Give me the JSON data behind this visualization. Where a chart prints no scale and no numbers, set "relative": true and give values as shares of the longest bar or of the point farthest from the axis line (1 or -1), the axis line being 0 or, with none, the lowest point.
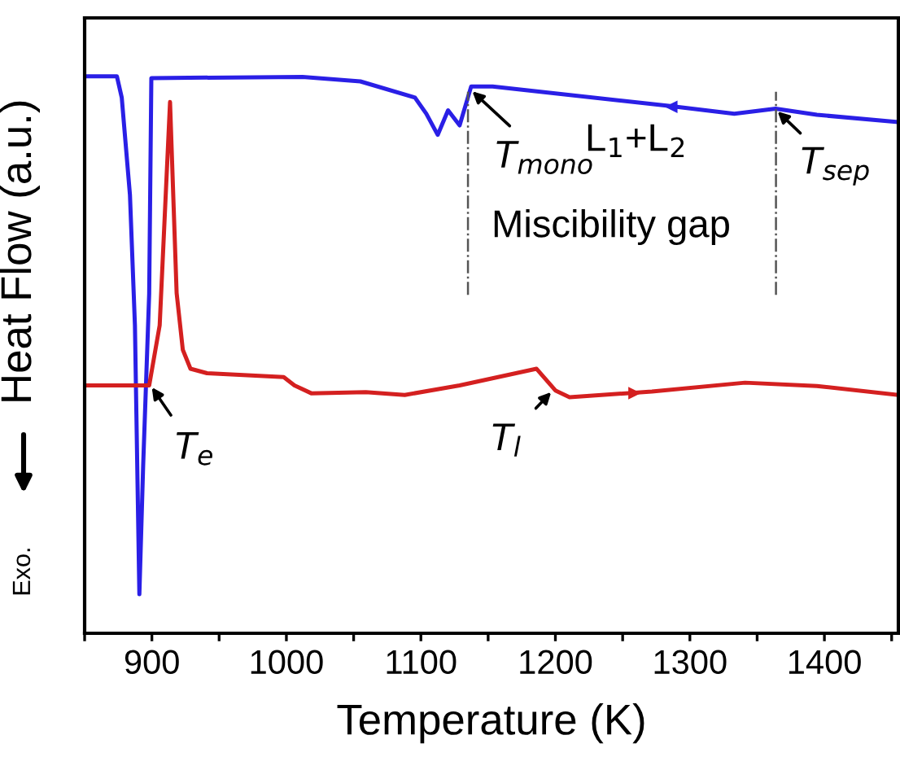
{
  "chart_data": {
    "type": "line",
    "relative": true,
    "xlabel": "Temperature (K)",
    "ylabel": "Heat Flow (a.u.)",
    "xlim": [
      850,
      1455
    ],
    "xticks": [
      {
        "value": 850,
        "label": null
      },
      900,
      {
        "value": 950,
        "label": null
      },
      1000,
      {
        "value": 1050,
        "label": null
      },
      1100,
      {
        "value": 1150,
        "label": null
      },
      1200,
      {
        "value": 1250,
        "label": null
      },
      1300,
      {
        "value": 1350,
        "label": null
      },
      1400,
      {
        "value": 1450,
        "label": null
      }
    ],
    "grid": false,
    "marker": "none",
    "line_style": "solid",
    "series": [
      {
        "color": "#2a1fe6",
        "x": [
          850,
          874,
          877.6,
          883.7,
          887.4,
          890.7,
          893.5,
          898,
          899.6,
          1012,
          1055,
          1095.6,
          1104,
          1112.5,
          1120.2,
          1128.8,
          1137.4,
          1153.3,
          1284,
          1333,
          1363.7,
          1394.4,
          1455
        ],
        "values": [
          1.0,
          1.0,
          0.962,
          0.787,
          0.553,
          0.07,
          0.3,
          0.61,
          0.997,
          0.999,
          0.991,
          0.962,
          0.933,
          0.895,
          0.939,
          0.912,
          0.982,
          0.982,
          0.947,
          0.933,
          0.942,
          0.931,
          0.918
        ]
      },
      {
        "color": "#d42020",
        "x": [
          850,
          898,
          905.8,
          913.5,
          918.4,
          923,
          928.7,
          941,
          998,
          1006,
          1018.5,
          1059,
          1088,
          1128.8,
          1186,
          1200,
          1210.5,
          1271.8,
          1341,
          1394.4,
          1455
        ],
        "values": [
          0.445,
          0.445,
          0.553,
          0.954,
          0.611,
          0.509,
          0.475,
          0.467,
          0.46,
          0.445,
          0.431,
          0.433,
          0.428,
          0.445,
          0.475,
          0.436,
          0.424,
          0.434,
          0.45,
          0.444,
          0.428
        ]
      }
    ],
    "ref_lines": [
      {
        "axis": "x",
        "value": 1135,
        "color": "#555555",
        "line_style": "dashdot"
      },
      {
        "axis": "x",
        "value": 1364,
        "color": "#555555",
        "line_style": "dashdot"
      }
    ],
    "annotations": [
      {
        "text": "T$_{e}$",
        "x": 899,
        "y": 0.445
      },
      {
        "text": "T$_{l}$",
        "x": 1198,
        "y": 0.436
      },
      {
        "text": "T$_{mono}$",
        "x": 1137,
        "y": 0.976
      },
      {
        "text": "T$_{sep}$",
        "x": 1364,
        "y": 0.94
      },
      "L$_{1}$+L$_{2}$",
      "Miscibility gap",
      "Exo."
    ]
  }
}
